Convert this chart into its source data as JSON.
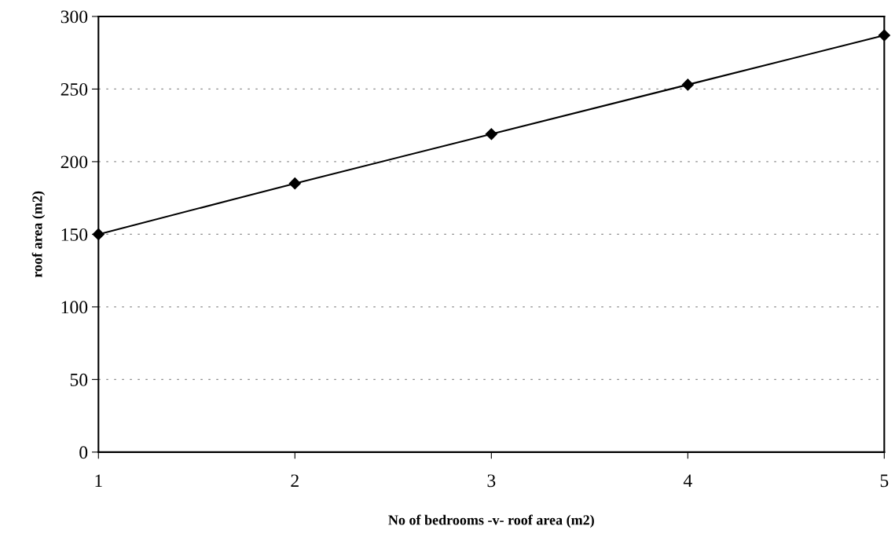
{
  "chart_data": {
    "type": "line",
    "xlabel": "No of bedrooms -v- roof area (m2)",
    "ylabel": "roof area (m2)",
    "x": [
      1,
      2,
      3,
      4,
      5
    ],
    "series": [
      {
        "color": "#000000",
        "values": [
          150,
          185,
          219,
          253,
          287
        ]
      }
    ],
    "xlim": [
      1,
      5
    ],
    "xticks": [
      1,
      2,
      3,
      4,
      5
    ],
    "ylim": [
      0,
      300
    ],
    "yticks": [
      0,
      50,
      100,
      150,
      200,
      250,
      300
    ],
    "grid": "y",
    "marker": "diamond",
    "line_style": "solid",
    "legend": false
  }
}
